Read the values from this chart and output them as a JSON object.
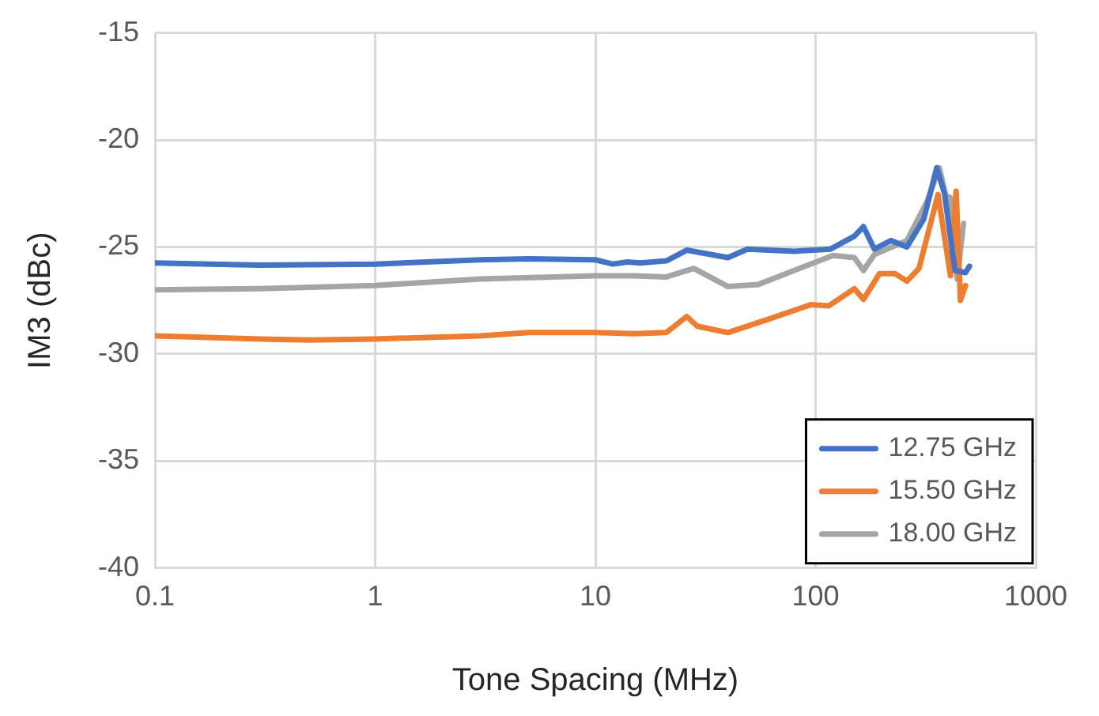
{
  "chart_data": {
    "type": "line",
    "xlabel": "Tone Spacing (MHz)",
    "ylabel": "IM3 (dBc)",
    "log": "x",
    "xlim": [
      0.1,
      1000
    ],
    "xticks": [
      0.1,
      1,
      10,
      100,
      1000
    ],
    "ylim": [
      -40,
      -15
    ],
    "yticks": [
      -40,
      -35,
      -30,
      -25,
      -20,
      -15
    ],
    "grid": true,
    "legend": "bottom right",
    "marker": "none",
    "line_style": "solid",
    "series": [
      {
        "name": "12.75 GHz",
        "color": "#4472c4",
        "x": [
          0.1,
          0.3,
          1,
          3,
          5,
          10,
          12,
          14,
          16,
          21,
          26,
          40,
          49,
          80,
          117,
          150,
          165,
          185,
          220,
          260,
          310,
          355,
          385,
          430,
          480,
          500
        ],
        "values": [
          -25.75,
          -25.85,
          -25.8,
          -25.6,
          -25.55,
          -25.6,
          -25.8,
          -25.7,
          -25.75,
          -25.65,
          -25.15,
          -25.5,
          -25.1,
          -25.2,
          -25.1,
          -24.5,
          -24.05,
          -25.1,
          -24.7,
          -25.0,
          -23.7,
          -21.3,
          -22.5,
          -26.1,
          -26.2,
          -25.9
        ]
      },
      {
        "name": "15.50 GHz",
        "color": "#ed7d31",
        "x": [
          0.1,
          0.3,
          0.5,
          1,
          3,
          5,
          10,
          15,
          21,
          26,
          29,
          40,
          60,
          95,
          115,
          150,
          165,
          195,
          230,
          260,
          295,
          360,
          410,
          435,
          455,
          480
        ],
        "values": [
          -29.15,
          -29.3,
          -29.35,
          -29.3,
          -29.15,
          -29.0,
          -29.0,
          -29.05,
          -29.0,
          -28.25,
          -28.7,
          -29.0,
          -28.4,
          -27.7,
          -27.75,
          -26.95,
          -27.45,
          -26.25,
          -26.25,
          -26.6,
          -26.0,
          -22.55,
          -26.35,
          -22.4,
          -27.5,
          -26.8
        ]
      },
      {
        "name": "18.00 GHz",
        "color": "#a5a5a5",
        "x": [
          0.1,
          0.3,
          1,
          3,
          10,
          15,
          21,
          28,
          40,
          55,
          80,
          120,
          150,
          165,
          185,
          260,
          320,
          365,
          390,
          410,
          440,
          470
        ],
        "values": [
          -27.0,
          -26.95,
          -26.8,
          -26.5,
          -26.35,
          -26.35,
          -26.4,
          -26.0,
          -26.85,
          -26.75,
          -26.1,
          -25.4,
          -25.5,
          -26.1,
          -25.35,
          -24.7,
          -22.9,
          -21.3,
          -22.6,
          -22.7,
          -26.5,
          -23.9
        ]
      }
    ]
  }
}
